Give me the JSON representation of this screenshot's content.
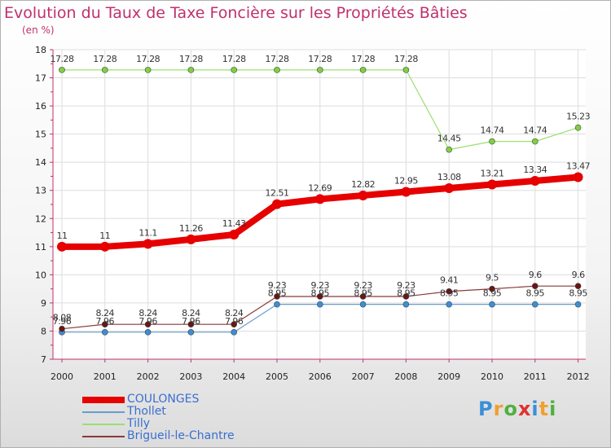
{
  "header": {
    "title": "Evolution du Taux de Taxe Foncière sur les Propriétés Bâties",
    "units": "(en %)"
  },
  "logo": {
    "text": "Proxiti",
    "letters": [
      "P",
      "r",
      "o",
      "x",
      "i",
      "t",
      "i"
    ],
    "colors": [
      "#3a8fd8",
      "#f0a030",
      "#50b040",
      "#e03030",
      "#3a8fd8",
      "#f0a030",
      "#50b040"
    ]
  },
  "colors": {
    "title": "#c0306e",
    "axis": "#c0306e",
    "grid": "#dddddd",
    "legend_text": "#3a6fd0"
  },
  "chart_data": {
    "type": "line",
    "title": "Evolution du Taux de Taxe Foncière sur les Propriétés Bâties",
    "ylabel": "(en %)",
    "xlabel": "",
    "x": [
      "2000",
      "2001",
      "2002",
      "2003",
      "2004",
      "2005",
      "2006",
      "2007",
      "2008",
      "2009",
      "2010",
      "2011",
      "2012"
    ],
    "ylim": [
      7,
      18
    ],
    "yticks": [
      7,
      8,
      9,
      10,
      11,
      12,
      13,
      14,
      15,
      16,
      17,
      18
    ],
    "grid": true,
    "legend": "bottom-left",
    "series": [
      {
        "name": "COULONGES",
        "color": "#e60000",
        "marker": "#e60000",
        "width": 8,
        "r": 6,
        "values": [
          11,
          11,
          11.1,
          11.26,
          11.43,
          12.51,
          12.69,
          12.82,
          12.95,
          13.08,
          13.21,
          13.34,
          13.47
        ],
        "labels": [
          "11",
          "11",
          "11.1",
          "11.26",
          "11.43",
          "12.51",
          "12.69",
          "12.82",
          "12.95",
          "13.08",
          "13.21",
          "13.34",
          "13.47"
        ]
      },
      {
        "name": "Thollet",
        "color": "#6a9ccc",
        "marker": "#3a8fd8",
        "width": 1.2,
        "r": 3.5,
        "values": [
          7.96,
          7.96,
          7.96,
          7.96,
          7.96,
          8.95,
          8.95,
          8.95,
          8.95,
          8.95,
          8.95,
          8.95,
          8.95
        ],
        "labels": [
          "7.96",
          "7.96",
          "7.96",
          "7.96",
          "7.96",
          "8.95",
          "8.95",
          "8.95",
          "8.95",
          "8.95",
          "8.95",
          "8.95",
          "8.95"
        ]
      },
      {
        "name": "Tilly",
        "color": "#9ae070",
        "marker": "#80d040",
        "width": 1.2,
        "r": 3.5,
        "values": [
          17.28,
          17.28,
          17.28,
          17.28,
          17.28,
          17.28,
          17.28,
          17.28,
          17.28,
          14.45,
          14.74,
          14.74,
          15.23
        ],
        "labels": [
          "17.28",
          "17.28",
          "17.28",
          "17.28",
          "17.28",
          "17.28",
          "17.28",
          "17.28",
          "17.28",
          "14.45",
          "14.74",
          "14.74",
          "15.23"
        ]
      },
      {
        "name": "Brigueil-le-Chantre",
        "color": "#8a3a3a",
        "marker": "#6a1515",
        "width": 1.2,
        "r": 3.5,
        "values": [
          8.08,
          8.24,
          8.24,
          8.24,
          8.24,
          9.23,
          9.23,
          9.23,
          9.23,
          9.41,
          9.5,
          9.6,
          9.6
        ],
        "labels": [
          "8.08",
          "8.24",
          "8.24",
          "8.24",
          "8.24",
          "9.23",
          "9.23",
          "9.23",
          "9.23",
          "9.41",
          "9.5",
          "9.6",
          "9.6"
        ]
      }
    ]
  }
}
